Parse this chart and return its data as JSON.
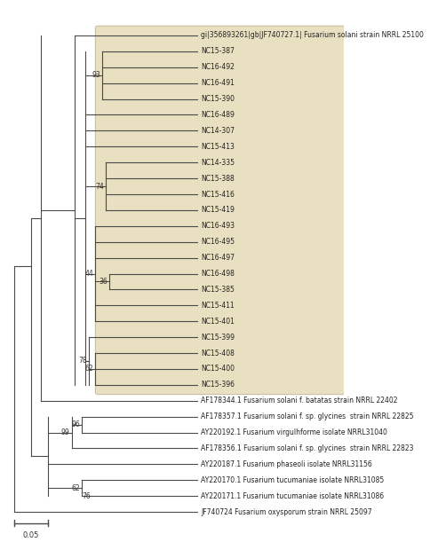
{
  "background_color": "#f5f0dc",
  "fig_bg": "#ffffff",
  "taxa": [
    "gi|356893261|gb|JF740727.1| Fusarium solani strain NRRL 25100",
    "NC15-387",
    "NC16-492",
    "NC16-491",
    "NC15-390",
    "NC16-489",
    "NC14-307",
    "NC15-413",
    "NC14-335",
    "NC15-388",
    "NC15-416",
    "NC15-419",
    "NC16-493",
    "NC16-495",
    "NC16-497",
    "NC16-498",
    "NC15-385",
    "NC15-411",
    "NC15-401",
    "NC15-399",
    "NC15-408",
    "NC15-400",
    "NC15-396",
    "AF178344.1 Fusarium solani f. batatas strain NRRL 22402",
    "AF178357.1 Fusarium solani f. sp. glycines  strain NRRL 22825",
    "AY220192.1 Fusarium virgulhforme isolate NRRL31040",
    "AF178356.1 Fusarium solani f. sp. glycines  strain NRRL 22823",
    "AY220187.1 Fusarium phaseoli isolate NRRL31156",
    "AY220170.1 Fusarium tucumaniae isolate NRRL31085",
    "AY220171.1 Fusarium tucumaniae isolate NRRL31086",
    "JF740724 Fusarium oxysporum strain NRRL 25097"
  ],
  "tree_color": "#4a4a4a",
  "label_fontsize": 5.5,
  "bootstrap_fontsize": 5.5,
  "scalebar_label": "0.05"
}
